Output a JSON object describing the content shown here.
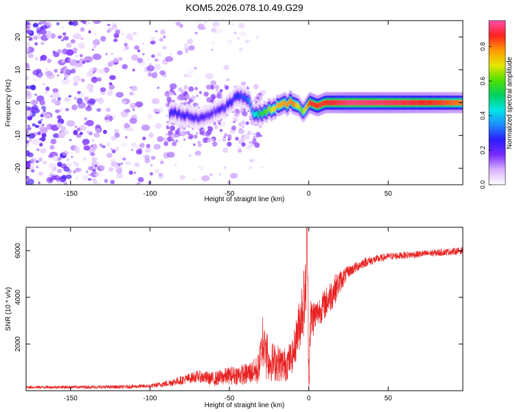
{
  "title": "KOM5.2026.078.10.49.G29",
  "colors": {
    "snr_line": "#e82020",
    "spectrum_ramp": [
      "#ffffff",
      "#d9b3ff",
      "#7a2bff",
      "#2a1cff",
      "#1f8bff",
      "#00e5e5",
      "#00d060",
      "#4fe000",
      "#e6e600",
      "#ff9a00",
      "#ff2020",
      "#ff4fb0"
    ]
  },
  "chart_data": [
    {
      "type": "heatmap",
      "title": "KOM5.2026.078.10.49.G29",
      "xlabel": "Height of straight line (km)",
      "ylabel": "Frequency (Hz)",
      "xlim": [
        -178,
        97
      ],
      "ylim": [
        -25,
        25
      ],
      "xticks": [
        -150,
        -100,
        -50,
        0,
        50
      ],
      "yticks": [
        -20,
        -10,
        0,
        10,
        20
      ],
      "colorbar": {
        "label": "Normalized spectral amplitude",
        "range": [
          0,
          0.95
        ],
        "ticks": [
          0.0,
          0.2,
          0.4,
          0.6,
          0.8
        ]
      },
      "ridge": {
        "description_points_km_hz": [
          [
            -85,
            -3
          ],
          [
            -70,
            -5
          ],
          [
            -55,
            -2
          ],
          [
            -45,
            2
          ],
          [
            -38,
            1
          ],
          [
            -35,
            -4
          ],
          [
            -28,
            -3
          ],
          [
            -20,
            -1
          ],
          [
            -12,
            0
          ],
          [
            -7,
            -1
          ],
          [
            -4,
            -3
          ],
          [
            0,
            0
          ],
          [
            5,
            -1
          ],
          [
            10,
            0
          ],
          [
            20,
            0
          ],
          [
            50,
            0
          ],
          [
            95,
            0
          ]
        ],
        "amplitude_points": [
          [
            -85,
            0.25
          ],
          [
            -60,
            0.2
          ],
          [
            -40,
            0.3
          ],
          [
            -30,
            0.55
          ],
          [
            -20,
            0.75
          ],
          [
            -10,
            0.8
          ],
          [
            -5,
            0.6
          ],
          [
            0,
            0.85
          ],
          [
            10,
            0.85
          ],
          [
            25,
            0.92
          ],
          [
            50,
            0.9
          ],
          [
            80,
            0.85
          ],
          [
            95,
            0.8
          ]
        ]
      }
    },
    {
      "type": "line",
      "xlabel": "Height of straight line (km)",
      "ylabel": "SNR (10 * v/v)",
      "xlim": [
        -178,
        97
      ],
      "ylim": [
        0,
        7000
      ],
      "xticks": [
        -150,
        -100,
        -50,
        0,
        50
      ],
      "yticks": [
        2000,
        4000,
        6000
      ],
      "series": [
        {
          "name": "SNR",
          "envelope_km_snr": [
            [
              -178,
              150
            ],
            [
              -120,
              160
            ],
            [
              -100,
              200
            ],
            [
              -90,
              300
            ],
            [
              -80,
              450
            ],
            [
              -70,
              620
            ],
            [
              -60,
              500
            ],
            [
              -50,
              650
            ],
            [
              -40,
              700
            ],
            [
              -32,
              900
            ],
            [
              -29,
              2000
            ],
            [
              -27,
              1300
            ],
            [
              -20,
              1200
            ],
            [
              -15,
              1100
            ],
            [
              -10,
              1500
            ],
            [
              -5,
              3200
            ],
            [
              -2,
              4200
            ],
            [
              -1,
              7000
            ],
            [
              0,
              600
            ],
            [
              1,
              3000
            ],
            [
              5,
              3300
            ],
            [
              10,
              3700
            ],
            [
              15,
              4200
            ],
            [
              20,
              4700
            ],
            [
              25,
              5100
            ],
            [
              35,
              5500
            ],
            [
              50,
              5750
            ],
            [
              70,
              5850
            ],
            [
              97,
              6000
            ]
          ],
          "noise_amplitude_km_snr": [
            [
              -178,
              60
            ],
            [
              -100,
              80
            ],
            [
              -60,
              300
            ],
            [
              -35,
              500
            ],
            [
              -28,
              900
            ],
            [
              -10,
              700
            ],
            [
              -3,
              1500
            ],
            [
              5,
              600
            ],
            [
              15,
              700
            ],
            [
              25,
              250
            ],
            [
              50,
              150
            ],
            [
              97,
              150
            ]
          ]
        }
      ]
    }
  ]
}
